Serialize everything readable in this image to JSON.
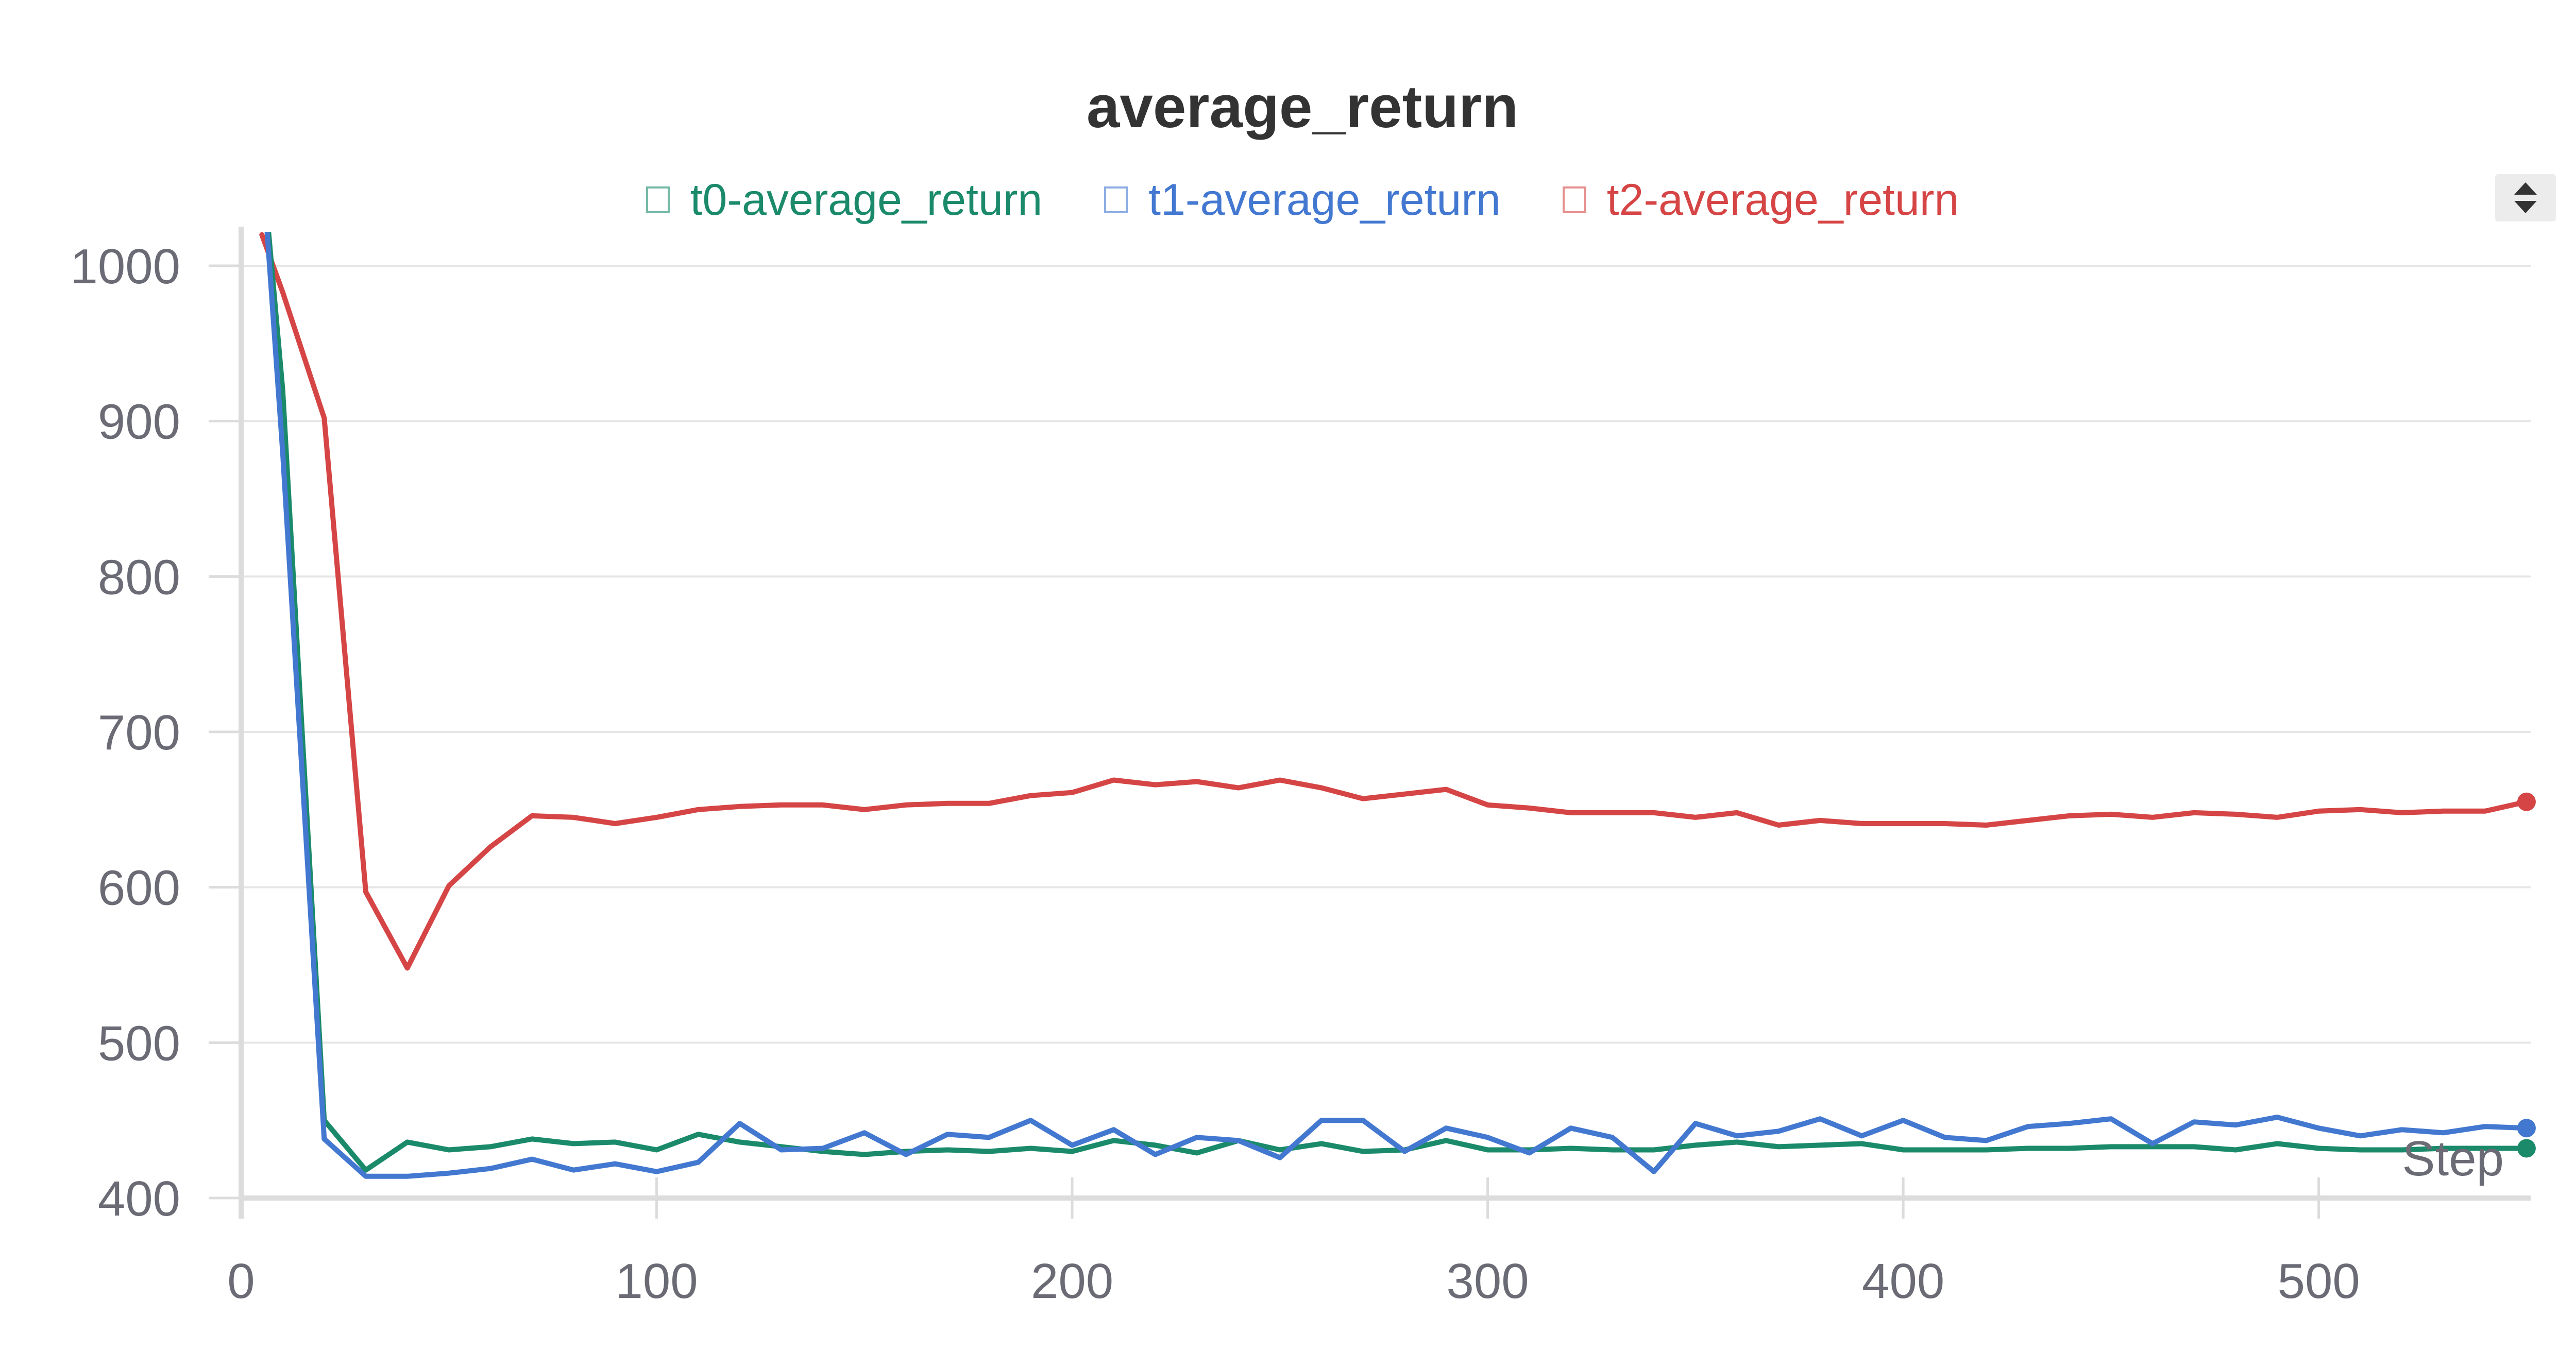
{
  "chart_data": {
    "type": "line",
    "title": "average_return",
    "xlabel": "Step",
    "ylabel": "",
    "xlim": [
      0,
      551
    ],
    "ylim": [
      400,
      1000
    ],
    "x_ticks": [
      0,
      100,
      200,
      300,
      400,
      500
    ],
    "y_ticks": [
      400,
      500,
      600,
      700,
      800,
      900,
      1000
    ],
    "grid": true,
    "legend_position": "top-center",
    "series": [
      {
        "name": "t0-average_return",
        "color": "#1a8a6b",
        "x": [
          5,
          10,
          20,
          30,
          40,
          50,
          60,
          70,
          80,
          90,
          100,
          110,
          120,
          130,
          140,
          150,
          160,
          170,
          180,
          190,
          200,
          210,
          220,
          230,
          240,
          250,
          260,
          270,
          280,
          290,
          300,
          310,
          320,
          330,
          340,
          350,
          360,
          370,
          380,
          390,
          400,
          410,
          420,
          430,
          440,
          450,
          460,
          470,
          480,
          490,
          500,
          510,
          520,
          530,
          540,
          550
        ],
        "y": [
          1070,
          920,
          450,
          418,
          436,
          431,
          433,
          438,
          435,
          436,
          431,
          441,
          436,
          433,
          430,
          428,
          430,
          431,
          430,
          432,
          430,
          437,
          434,
          429,
          437,
          431,
          435,
          430,
          431,
          437,
          431,
          431,
          432,
          431,
          431,
          434,
          436,
          433,
          434,
          435,
          431,
          431,
          431,
          432,
          432,
          433,
          433,
          433,
          431,
          435,
          432,
          431,
          431,
          432,
          432,
          432
        ]
      },
      {
        "name": "t1-average_return",
        "color": "#4378d1",
        "x": [
          5,
          10,
          20,
          30,
          40,
          50,
          60,
          70,
          80,
          90,
          100,
          110,
          120,
          130,
          140,
          150,
          160,
          170,
          180,
          190,
          200,
          210,
          220,
          230,
          240,
          250,
          260,
          270,
          280,
          290,
          300,
          310,
          320,
          330,
          340,
          350,
          360,
          370,
          380,
          390,
          400,
          410,
          420,
          430,
          440,
          450,
          460,
          470,
          480,
          490,
          500,
          510,
          520,
          530,
          540,
          550
        ],
        "y": [
          1070,
          880,
          438,
          414,
          414,
          416,
          419,
          425,
          418,
          422,
          417,
          423,
          448,
          431,
          432,
          442,
          428,
          441,
          439,
          450,
          434,
          444,
          428,
          439,
          437,
          426,
          450,
          450,
          430,
          445,
          439,
          429,
          445,
          439,
          417,
          448,
          440,
          443,
          451,
          440,
          450,
          439,
          437,
          446,
          448,
          451,
          435,
          449,
          447,
          452,
          445,
          440,
          444,
          442,
          446,
          445
        ]
      },
      {
        "name": "t2-average_return",
        "color": "#d64545",
        "x": [
          5,
          10,
          20,
          30,
          40,
          50,
          60,
          70,
          80,
          90,
          100,
          110,
          120,
          130,
          140,
          150,
          160,
          170,
          180,
          190,
          200,
          210,
          220,
          230,
          240,
          250,
          260,
          270,
          280,
          290,
          300,
          310,
          320,
          330,
          340,
          350,
          360,
          370,
          380,
          390,
          400,
          410,
          420,
          430,
          440,
          450,
          460,
          470,
          480,
          490,
          500,
          510,
          520,
          530,
          540,
          550
        ],
        "y": [
          1020,
          983,
          902,
          597,
          548,
          601,
          626,
          646,
          645,
          641,
          645,
          650,
          652,
          653,
          653,
          650,
          653,
          654,
          654,
          659,
          661,
          669,
          666,
          668,
          664,
          669,
          664,
          657,
          660,
          663,
          653,
          651,
          648,
          648,
          648,
          645,
          648,
          640,
          643,
          641,
          641,
          641,
          640,
          643,
          646,
          647,
          645,
          648,
          647,
          645,
          649,
          650,
          648,
          649,
          649,
          655
        ]
      }
    ]
  }
}
